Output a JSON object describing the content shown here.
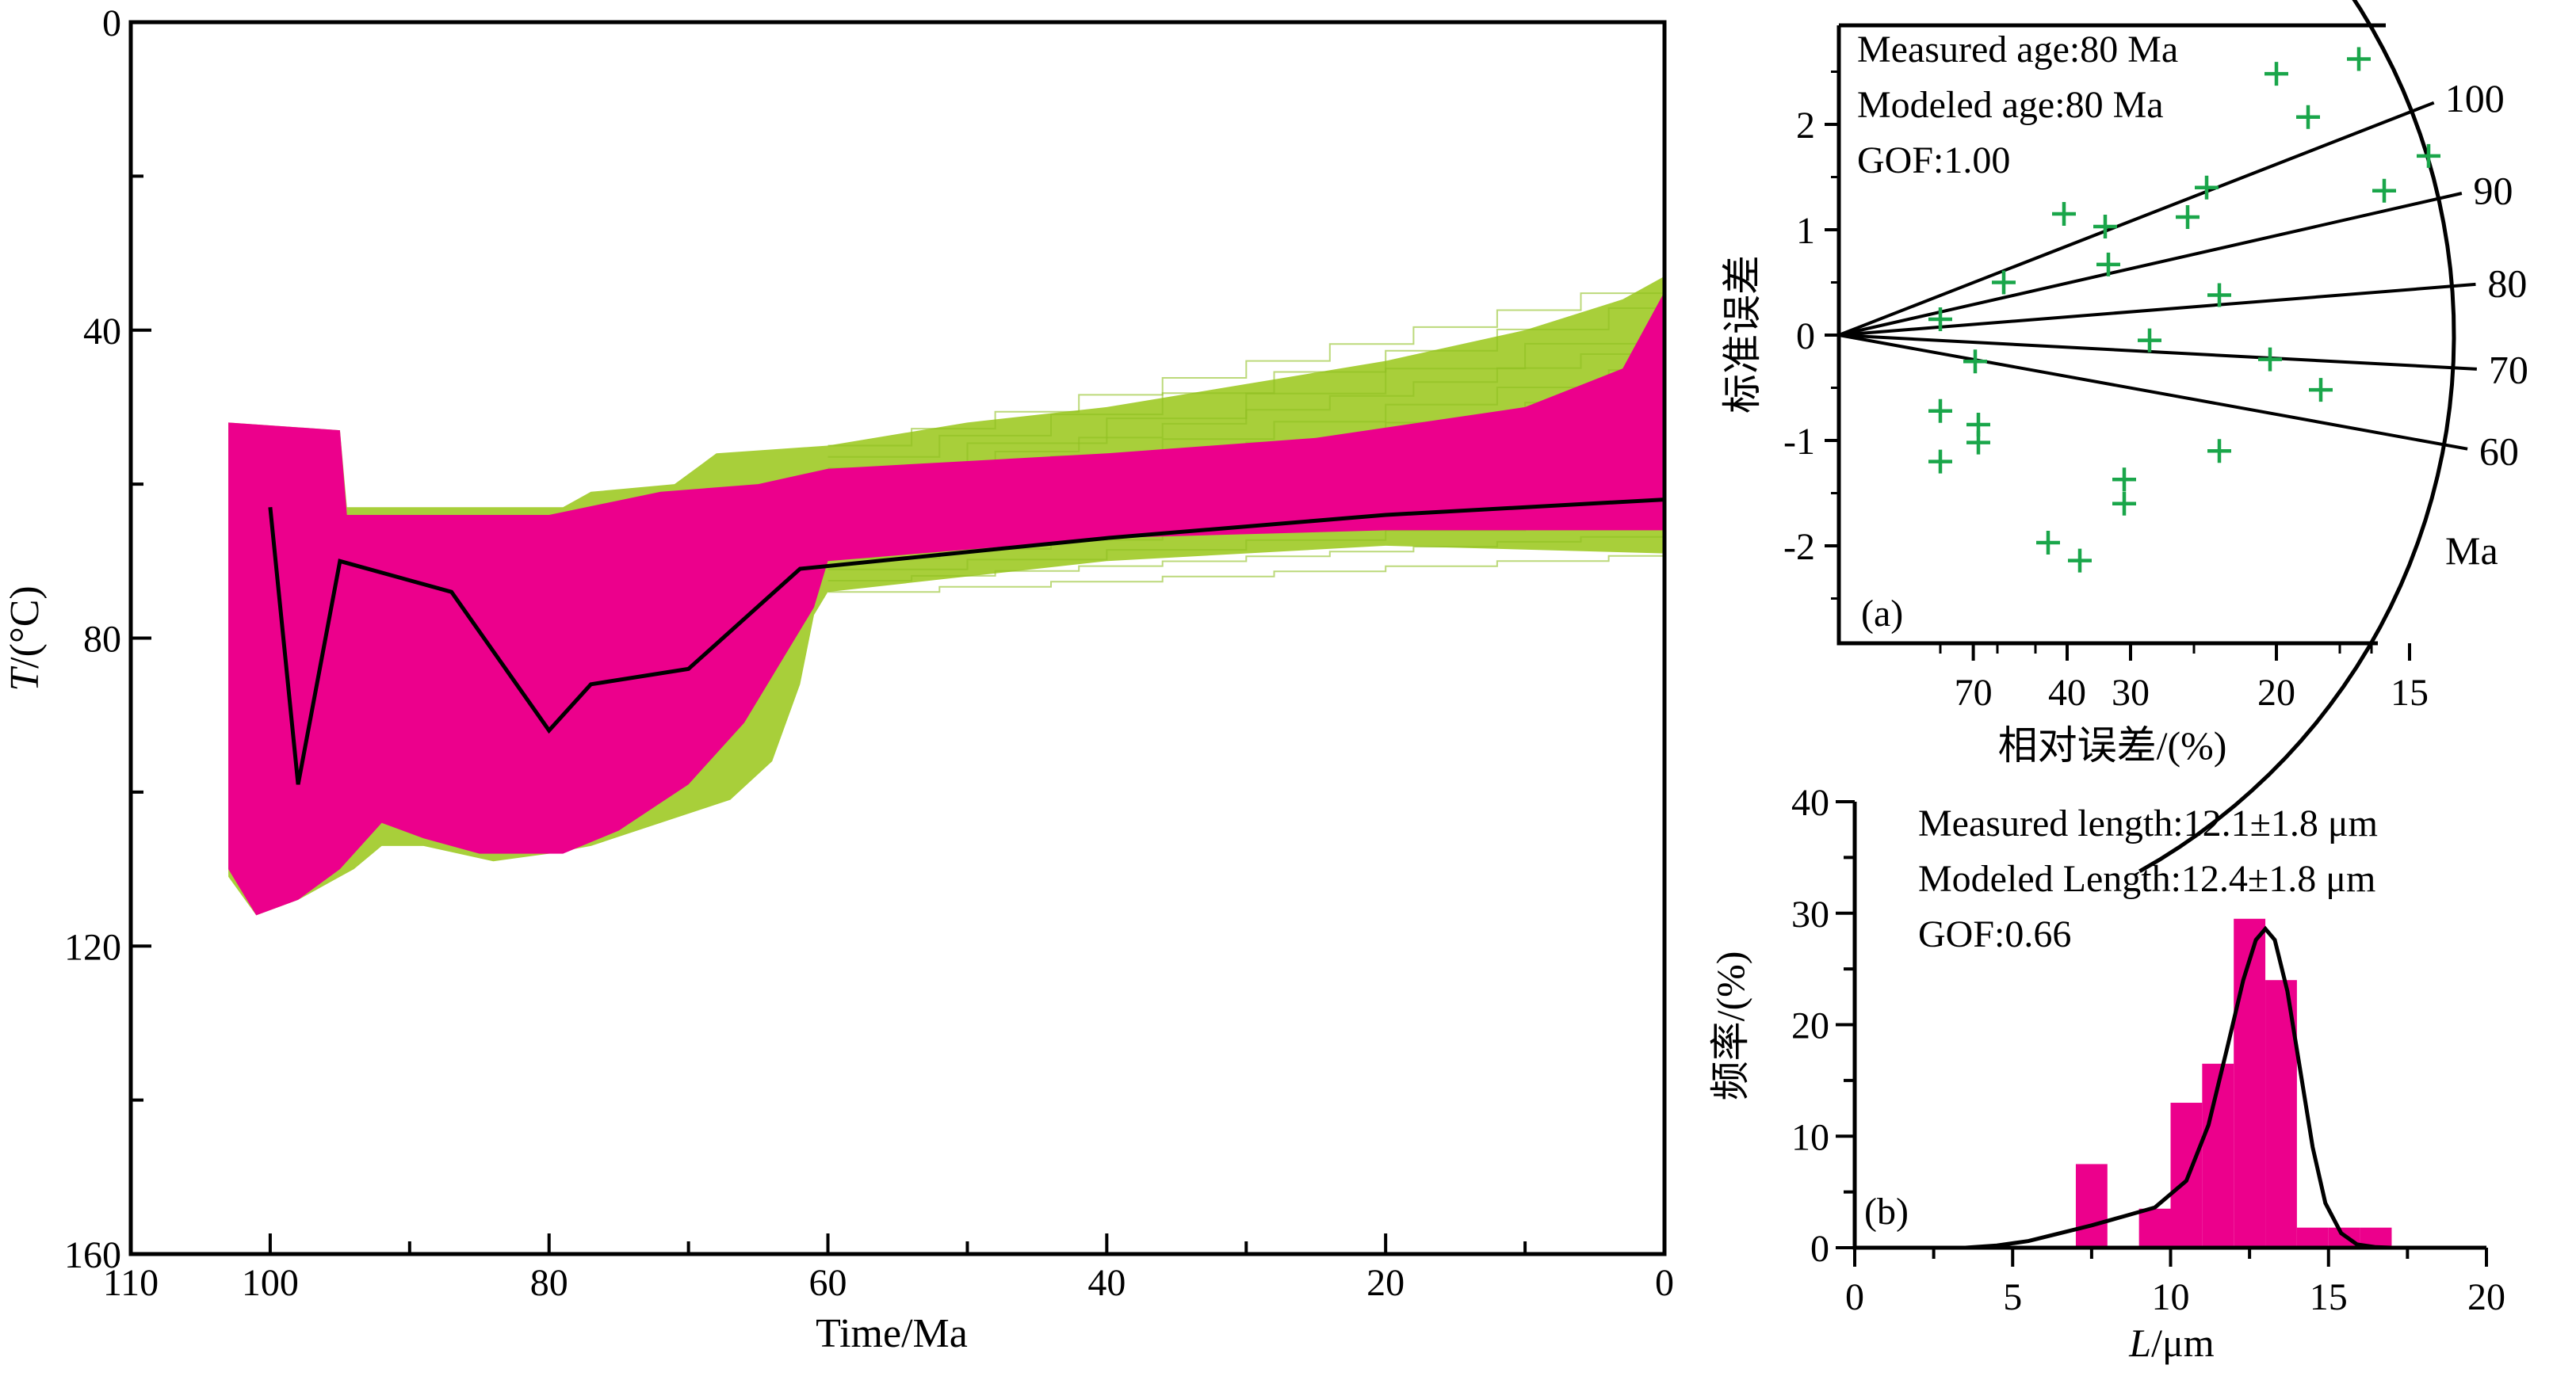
{
  "colors": {
    "good_paths": "#a8cf3a",
    "acceptable_paths": "#ec008c",
    "best_path": "#000000",
    "radial_points": "#1aa64a",
    "histogram_bars": "#ec008c",
    "axes": "#000000"
  },
  "chart_data": [
    {
      "id": "thermal-history",
      "type": "line",
      "xlabel": "Time/Ma",
      "ylabel_italic": "T",
      "ylabel_rest": "/(°C)",
      "xlim": [
        110,
        0
      ],
      "ylim": [
        0,
        160
      ],
      "xticks": [
        110,
        100,
        80,
        60,
        40,
        20,
        0
      ],
      "yticks": [
        0,
        40,
        80,
        120,
        160
      ],
      "best_fit_path": [
        [
          100,
          63
        ],
        [
          98,
          99
        ],
        [
          95,
          70
        ],
        [
          87,
          74
        ],
        [
          80,
          92
        ],
        [
          77,
          86
        ],
        [
          70,
          84
        ],
        [
          62,
          71
        ],
        [
          40,
          67
        ],
        [
          20,
          64
        ],
        [
          0,
          62
        ]
      ],
      "good_envelope": {
        "upper": [
          [
            103,
            52
          ],
          [
            95,
            53
          ],
          [
            94.5,
            63
          ],
          [
            79,
            63
          ],
          [
            77,
            61
          ],
          [
            71,
            60
          ],
          [
            68,
            56
          ],
          [
            60,
            55
          ],
          [
            50,
            52
          ],
          [
            40,
            50
          ],
          [
            30,
            47
          ],
          [
            20,
            44
          ],
          [
            10,
            40
          ],
          [
            3,
            36
          ],
          [
            0,
            33
          ]
        ],
        "lower": [
          [
            0,
            69
          ],
          [
            20,
            68
          ],
          [
            40,
            70
          ],
          [
            60,
            74
          ],
          [
            61,
            77
          ],
          [
            62,
            86
          ],
          [
            64,
            96
          ],
          [
            67,
            101
          ],
          [
            77,
            107
          ],
          [
            80,
            108
          ],
          [
            84,
            109
          ],
          [
            89,
            107
          ],
          [
            92,
            107
          ],
          [
            94,
            110
          ],
          [
            95,
            111
          ],
          [
            98,
            114
          ],
          [
            101,
            116
          ],
          [
            103,
            111
          ]
        ]
      },
      "acceptable_envelope": {
        "upper": [
          [
            103,
            52
          ],
          [
            95,
            53
          ],
          [
            94.5,
            64
          ],
          [
            80,
            64
          ],
          [
            72,
            61
          ],
          [
            65,
            60
          ],
          [
            60,
            58
          ],
          [
            40,
            56
          ],
          [
            25,
            54
          ],
          [
            10,
            50
          ],
          [
            3,
            45
          ],
          [
            0,
            35
          ]
        ],
        "lower": [
          [
            0,
            66
          ],
          [
            20,
            66
          ],
          [
            40,
            67
          ],
          [
            60,
            70
          ],
          [
            61,
            76
          ],
          [
            63,
            82
          ],
          [
            66,
            91
          ],
          [
            70,
            99
          ],
          [
            75,
            105
          ],
          [
            79,
            108
          ],
          [
            85,
            108
          ],
          [
            89,
            106
          ],
          [
            92,
            104
          ],
          [
            94,
            108
          ],
          [
            95,
            110
          ],
          [
            98,
            114
          ],
          [
            101,
            116
          ],
          [
            103,
            110
          ]
        ]
      }
    },
    {
      "id": "radial-plot",
      "type": "scatter",
      "label": "(a)",
      "annotations": [
        "Measured age:80 Ma",
        "Modeled age:80 Ma",
        "GOF:1.00"
      ],
      "ylabel": "标准误差",
      "xlabel": "相对误差/(%)",
      "ylim": [
        -3,
        2.8
      ],
      "yticks": [
        -2,
        -1,
        0,
        1,
        2
      ],
      "x_ticks": [
        {
          "label": "70",
          "precision": 2.12
        },
        {
          "label": "40",
          "precision": 3.6
        },
        {
          "label": "30",
          "precision": 4.6
        },
        {
          "label": "20",
          "precision": 6.9
        },
        {
          "label": "15",
          "precision": 9.0
        }
      ],
      "age_ticks": [
        {
          "label": "100",
          "slope": 0.235
        },
        {
          "label": "90",
          "slope": 0.137
        },
        {
          "label": "80",
          "slope": 0.048
        },
        {
          "label": "70",
          "slope": -0.032
        },
        {
          "label": "60",
          "slope": -0.109
        }
      ],
      "age_unit": "Ma",
      "points": [
        [
          1.6,
          0.15
        ],
        [
          1.6,
          -0.72
        ],
        [
          1.6,
          -1.2
        ],
        [
          2.15,
          -0.25
        ],
        [
          2.2,
          -0.85
        ],
        [
          2.2,
          -1.02
        ],
        [
          2.6,
          0.5
        ],
        [
          3.3,
          -1.97
        ],
        [
          3.55,
          1.15
        ],
        [
          3.8,
          -2.14
        ],
        [
          4.2,
          1.03
        ],
        [
          4.25,
          0.67
        ],
        [
          4.5,
          -1.37
        ],
        [
          4.5,
          -1.6
        ],
        [
          4.9,
          -0.05
        ],
        [
          5.5,
          1.12
        ],
        [
          5.8,
          1.4
        ],
        [
          6.0,
          0.38
        ],
        [
          6.0,
          -1.1
        ],
        [
          6.8,
          -0.23
        ],
        [
          6.9,
          2.48
        ],
        [
          7.4,
          2.07
        ],
        [
          7.6,
          -0.52
        ],
        [
          8.6,
          1.37
        ],
        [
          8.2,
          2.62
        ],
        [
          9.3,
          1.7
        ]
      ]
    },
    {
      "id": "length-histogram",
      "type": "bar",
      "label": "(b)",
      "annotations": [
        "Measured length:12.1±1.8 μm",
        "Modeled Length:12.4±1.8 μm",
        "GOF:0.66"
      ],
      "ylabel": "频率/(%)",
      "xlabel_italic": "L",
      "xlabel_rest": "/μm",
      "xlim": [
        0,
        20
      ],
      "ylim": [
        0,
        40
      ],
      "xticks": [
        0,
        5,
        10,
        15,
        20
      ],
      "yticks": [
        0,
        10,
        20,
        30,
        40
      ],
      "bin_width": 1,
      "bins": [
        [
          7,
          7.5
        ],
        [
          9,
          3.5
        ],
        [
          10,
          13
        ],
        [
          11,
          16.5
        ],
        [
          12,
          29.5
        ],
        [
          13,
          24
        ],
        [
          14,
          1.8
        ],
        [
          15,
          1.8
        ],
        [
          16,
          1.8
        ]
      ],
      "model_curve": [
        [
          3.5,
          0
        ],
        [
          4.5,
          0.2
        ],
        [
          5.5,
          0.6
        ],
        [
          6.5,
          1.3
        ],
        [
          7.5,
          2.0
        ],
        [
          8.5,
          2.8
        ],
        [
          9.5,
          3.6
        ],
        [
          10.5,
          6.0
        ],
        [
          11.2,
          11.0
        ],
        [
          11.8,
          18.0
        ],
        [
          12.3,
          24.0
        ],
        [
          12.7,
          27.6
        ],
        [
          13.0,
          28.6
        ],
        [
          13.3,
          27.6
        ],
        [
          13.7,
          23.0
        ],
        [
          14.1,
          16.0
        ],
        [
          14.5,
          9.0
        ],
        [
          14.9,
          4.0
        ],
        [
          15.4,
          1.3
        ],
        [
          15.9,
          0.3
        ],
        [
          16.5,
          0.05
        ],
        [
          17.0,
          0
        ]
      ]
    }
  ]
}
